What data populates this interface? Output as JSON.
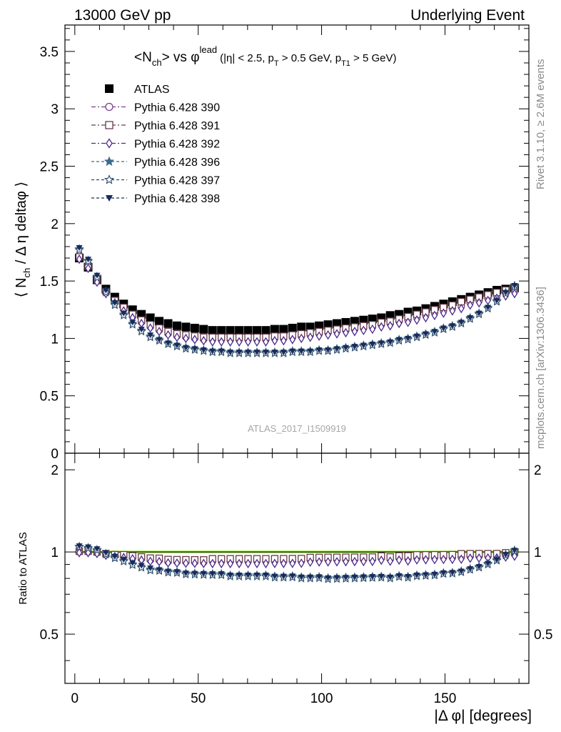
{
  "header": {
    "left": "13000 GeV pp",
    "right": "Underlying Event"
  },
  "side_labels": {
    "rivet": "Rivet 3.1.10, ≥ 2.6M events",
    "mcplots": "mcplots.cern.ch [arXiv:1306.3436]"
  },
  "title": {
    "main_prefix": "<N",
    "main_sub": "ch",
    "main_mid": "> vs φ",
    "main_sup": "lead",
    "cuts": "(|η| < 2.5, p",
    "cuts_sub1": "T",
    "cuts_mid": " > 0.5 GeV, p",
    "cuts_sub2": "T1",
    "cuts_end": " > 5 GeV)"
  },
  "watermark": "ATLAS_2017_I1509919",
  "colors": {
    "atlas": "#000000",
    "p390": "#7b3f8c",
    "p391": "#6b3a4a",
    "p392": "#4b2a8c",
    "p396": "#3b6a8a",
    "p397": "#2a4a6a",
    "p398": "#1a2a5a",
    "band": "#aaff44"
  },
  "chart_data": {
    "type": "scatter",
    "xlabel": "|Δ φ| [degrees]",
    "ylabel_main": "⟨ N",
    "ylabel_sub": "ch",
    "ylabel_end": " / Δ η deltaφ ⟩",
    "ratio_ylabel": "Ratio to ATLAS",
    "xlim": [
      -4,
      184
    ],
    "ylim_main": [
      0,
      3.73
    ],
    "ylim_ratio": [
      0.33,
      2.3
    ],
    "ratio_log": true,
    "xticks": [
      "0",
      "50",
      "100",
      "150"
    ],
    "yticks_main": [
      "0",
      "0.5",
      "1",
      "1.5",
      "2",
      "2.5",
      "3",
      "3.5"
    ],
    "yticks_ratio": [
      "0.5",
      "1",
      "2"
    ],
    "legend": [
      "ATLAS",
      "Pythia 6.428 390",
      "Pythia 6.428 391",
      "Pythia 6.428 392",
      "Pythia 6.428 396",
      "Pythia 6.428 397",
      "Pythia 6.428 398"
    ],
    "x": [
      1.8,
      5.4,
      9.0,
      12.6,
      16.2,
      19.8,
      23.4,
      27.0,
      30.6,
      34.2,
      37.8,
      41.4,
      45.0,
      48.6,
      52.2,
      55.8,
      59.4,
      63.0,
      66.6,
      70.2,
      73.8,
      77.4,
      81.0,
      84.6,
      88.2,
      91.8,
      95.4,
      99.0,
      102.6,
      106.2,
      109.8,
      113.4,
      117.0,
      120.6,
      124.2,
      127.8,
      131.4,
      135.0,
      138.6,
      142.2,
      145.8,
      149.4,
      153.0,
      156.6,
      160.2,
      163.8,
      167.4,
      171.0,
      174.6,
      178.2
    ],
    "series": [
      {
        "name": "ATLAS",
        "values": [
          1.7,
          1.62,
          1.51,
          1.43,
          1.36,
          1.3,
          1.25,
          1.21,
          1.18,
          1.15,
          1.13,
          1.11,
          1.1,
          1.09,
          1.08,
          1.07,
          1.07,
          1.07,
          1.07,
          1.07,
          1.07,
          1.07,
          1.08,
          1.08,
          1.09,
          1.1,
          1.1,
          1.11,
          1.12,
          1.13,
          1.14,
          1.15,
          1.16,
          1.17,
          1.18,
          1.2,
          1.21,
          1.23,
          1.24,
          1.26,
          1.28,
          1.3,
          1.32,
          1.34,
          1.36,
          1.38,
          1.4,
          1.42,
          1.43,
          1.44
        ]
      },
      {
        "name": "Pythia 6.428 390",
        "values": [
          1.7,
          1.62,
          1.5,
          1.4,
          1.32,
          1.25,
          1.19,
          1.14,
          1.1,
          1.07,
          1.04,
          1.02,
          1.01,
          1.0,
          0.99,
          0.99,
          0.99,
          0.99,
          0.99,
          0.99,
          0.99,
          0.99,
          1.0,
          1.0,
          1.01,
          1.02,
          1.03,
          1.04,
          1.05,
          1.06,
          1.07,
          1.08,
          1.09,
          1.1,
          1.12,
          1.13,
          1.15,
          1.16,
          1.18,
          1.2,
          1.22,
          1.24,
          1.26,
          1.28,
          1.31,
          1.33,
          1.35,
          1.37,
          1.39,
          1.41
        ]
      },
      {
        "name": "Pythia 6.428 391",
        "values": [
          1.71,
          1.63,
          1.51,
          1.41,
          1.33,
          1.27,
          1.21,
          1.16,
          1.12,
          1.09,
          1.06,
          1.04,
          1.03,
          1.02,
          1.01,
          1.01,
          1.01,
          1.01,
          1.01,
          1.01,
          1.01,
          1.01,
          1.02,
          1.02,
          1.03,
          1.04,
          1.05,
          1.06,
          1.07,
          1.08,
          1.09,
          1.1,
          1.11,
          1.12,
          1.14,
          1.15,
          1.17,
          1.19,
          1.21,
          1.23,
          1.25,
          1.27,
          1.29,
          1.32,
          1.34,
          1.36,
          1.38,
          1.4,
          1.42,
          1.44
        ]
      },
      {
        "name": "Pythia 6.428 392",
        "values": [
          1.69,
          1.61,
          1.49,
          1.39,
          1.31,
          1.24,
          1.18,
          1.13,
          1.09,
          1.06,
          1.03,
          1.01,
          1.0,
          0.99,
          0.98,
          0.97,
          0.97,
          0.97,
          0.97,
          0.97,
          0.97,
          0.97,
          0.98,
          0.98,
          0.99,
          1.0,
          1.01,
          1.02,
          1.03,
          1.04,
          1.05,
          1.06,
          1.07,
          1.08,
          1.1,
          1.11,
          1.13,
          1.14,
          1.16,
          1.18,
          1.2,
          1.22,
          1.24,
          1.26,
          1.29,
          1.31,
          1.33,
          1.35,
          1.37,
          1.39
        ]
      },
      {
        "name": "Pythia 6.428 396",
        "values": [
          1.78,
          1.68,
          1.54,
          1.41,
          1.3,
          1.21,
          1.13,
          1.07,
          1.02,
          0.99,
          0.96,
          0.94,
          0.92,
          0.91,
          0.9,
          0.89,
          0.89,
          0.88,
          0.88,
          0.88,
          0.88,
          0.88,
          0.88,
          0.88,
          0.89,
          0.89,
          0.89,
          0.9,
          0.9,
          0.91,
          0.92,
          0.93,
          0.94,
          0.95,
          0.96,
          0.97,
          0.99,
          1.0,
          1.02,
          1.04,
          1.06,
          1.09,
          1.11,
          1.14,
          1.18,
          1.22,
          1.27,
          1.33,
          1.4,
          1.46
        ]
      },
      {
        "name": "Pythia 6.428 397",
        "values": [
          1.77,
          1.67,
          1.53,
          1.4,
          1.29,
          1.2,
          1.12,
          1.06,
          1.01,
          0.98,
          0.95,
          0.93,
          0.91,
          0.9,
          0.89,
          0.88,
          0.88,
          0.87,
          0.87,
          0.87,
          0.87,
          0.87,
          0.87,
          0.87,
          0.88,
          0.88,
          0.88,
          0.89,
          0.89,
          0.9,
          0.91,
          0.92,
          0.93,
          0.94,
          0.95,
          0.96,
          0.98,
          0.99,
          1.01,
          1.03,
          1.05,
          1.08,
          1.1,
          1.13,
          1.17,
          1.21,
          1.26,
          1.32,
          1.39,
          1.45
        ]
      },
      {
        "name": "Pythia 6.428 398",
        "values": [
          1.79,
          1.69,
          1.55,
          1.42,
          1.31,
          1.22,
          1.14,
          1.08,
          1.03,
          0.99,
          0.96,
          0.94,
          0.92,
          0.91,
          0.9,
          0.89,
          0.89,
          0.88,
          0.88,
          0.88,
          0.88,
          0.88,
          0.88,
          0.88,
          0.89,
          0.89,
          0.89,
          0.9,
          0.9,
          0.91,
          0.92,
          0.93,
          0.94,
          0.95,
          0.96,
          0.97,
          0.99,
          1.0,
          1.02,
          1.04,
          1.06,
          1.09,
          1.11,
          1.14,
          1.18,
          1.22,
          1.27,
          1.33,
          1.4,
          1.46
        ]
      }
    ]
  }
}
